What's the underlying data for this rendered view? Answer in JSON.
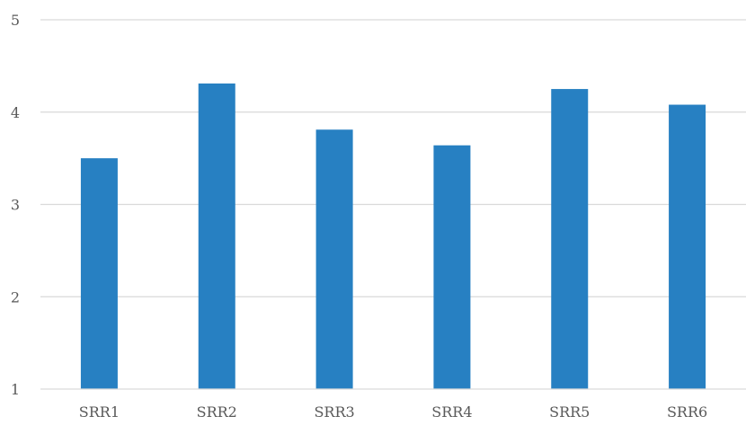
{
  "chart_data": {
    "type": "bar",
    "categories": [
      "SRR1",
      "SRR2",
      "SRR3",
      "SRR4",
      "SRR5",
      "SRR6"
    ],
    "series": [
      {
        "values": [
          3.5,
          4.31,
          3.81,
          3.64,
          4.25,
          4.08
        ]
      }
    ],
    "ylim": [
      1,
      5
    ],
    "yticks": [
      "1",
      "2",
      "3",
      "4",
      "5"
    ],
    "grid": true,
    "bar_color": "#2780c2",
    "title": "",
    "xlabel": "",
    "ylabel": ""
  }
}
